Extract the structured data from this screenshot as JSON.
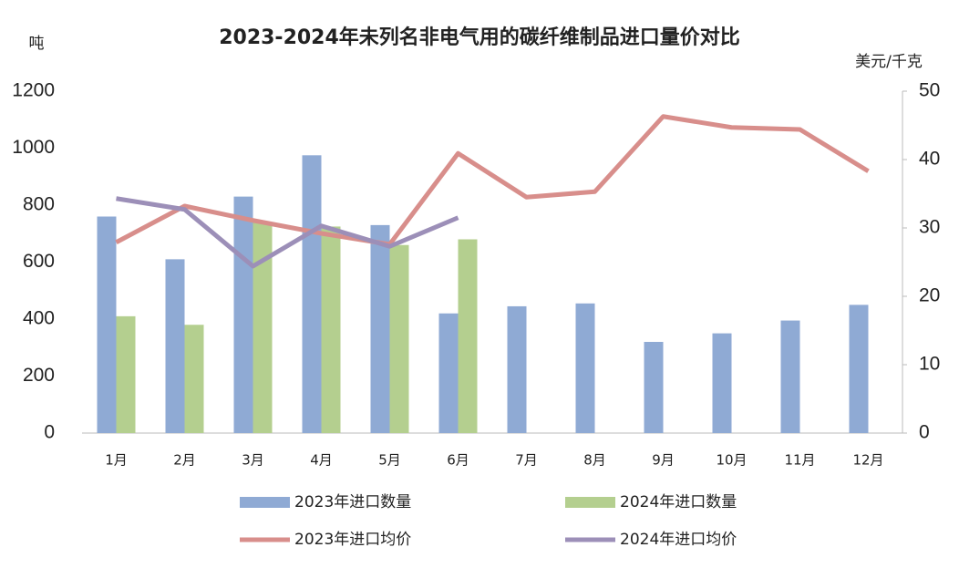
{
  "chart_data": {
    "type": "bar-line",
    "title": "2023-2024年未列名非电气用的碳纤维制品进口量价对比",
    "y_label": "吨",
    "y2_label": "美元/千克",
    "categories": [
      "1月",
      "2月",
      "3月",
      "4月",
      "5月",
      "6月",
      "7月",
      "8月",
      "9月",
      "10月",
      "11月",
      "12月"
    ],
    "series": [
      {
        "name": "2023年进口数量",
        "type": "bar",
        "color": "#8faad4",
        "values": [
          760,
          610,
          830,
          975,
          730,
          420,
          445,
          455,
          320,
          350,
          395,
          450
        ]
      },
      {
        "name": "2024年进口数量",
        "type": "bar",
        "color": "#b4cf8f",
        "values": [
          410,
          380,
          740,
          725,
          660,
          680,
          null,
          null,
          null,
          null,
          null,
          null
        ]
      },
      {
        "name": "2023年进口均价",
        "type": "line",
        "axis": "y2",
        "color": "#d88e8b",
        "values": [
          27.9,
          33.2,
          31.1,
          29.2,
          27.6,
          40.9,
          34.5,
          35.3,
          46.3,
          44.7,
          44.4,
          38.3
        ]
      },
      {
        "name": "2024年进口均价",
        "type": "line",
        "axis": "y2",
        "color": "#9c8fb8",
        "values": [
          34.3,
          32.7,
          24.4,
          30.3,
          27.3,
          31.5,
          null,
          null,
          null,
          null,
          null,
          null
        ]
      }
    ],
    "ylim": [
      0,
      1200
    ],
    "yticks": [
      0,
      200,
      400,
      600,
      800,
      1000,
      1200
    ],
    "y2lim": [
      0,
      50
    ],
    "y2ticks": [
      0,
      10,
      20,
      30,
      40,
      50
    ]
  }
}
